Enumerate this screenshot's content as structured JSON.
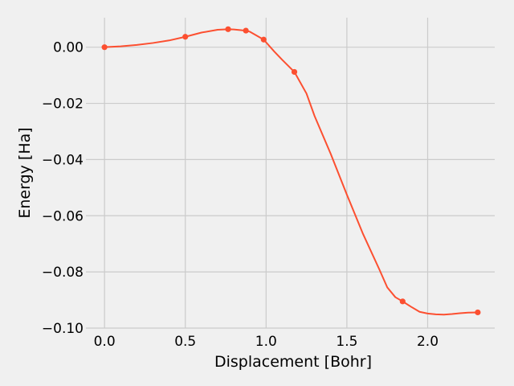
{
  "chart_data": {
    "type": "line",
    "title": "",
    "xlabel": "Displacement [Bohr]",
    "ylabel": "Energy [Ha]",
    "xlim": [
      -0.115,
      2.415
    ],
    "ylim": [
      -0.1,
      0.0105
    ],
    "grid": true,
    "x_ticks": [
      0.0,
      0.5,
      1.0,
      1.5,
      2.0
    ],
    "x_tick_labels": [
      "0.0",
      "0.5",
      "1.0",
      "1.5",
      "2.0"
    ],
    "y_ticks": [
      0.0,
      -0.02,
      -0.04,
      -0.06,
      -0.08,
      -0.1
    ],
    "y_tick_labels": [
      "0.00",
      "−0.02",
      "−0.04",
      "−0.06",
      "−0.08",
      "−0.10"
    ],
    "color": "#fc4f30",
    "markers": {
      "x": [
        0.0,
        0.5,
        0.765,
        0.875,
        0.985,
        1.175,
        1.845,
        2.31
      ],
      "y": [
        0.0,
        0.0037,
        0.0064,
        0.0059,
        0.0027,
        -0.0088,
        -0.0905,
        -0.0944
      ]
    },
    "curve": {
      "x": [
        0.0,
        0.1,
        0.2,
        0.3,
        0.4,
        0.5,
        0.6,
        0.7,
        0.765,
        0.8,
        0.875,
        0.9,
        0.985,
        1.05,
        1.1,
        1.175,
        1.25,
        1.3,
        1.4,
        1.5,
        1.6,
        1.7,
        1.75,
        1.8,
        1.845,
        1.9,
        1.95,
        2.0,
        2.05,
        2.1,
        2.15,
        2.2,
        2.25,
        2.31
      ],
      "y": [
        0.0,
        0.0003,
        0.0008,
        0.0015,
        0.0024,
        0.0037,
        0.0052,
        0.0062,
        0.0064,
        0.0063,
        0.0059,
        0.0055,
        0.0027,
        -0.0015,
        -0.0045,
        -0.0088,
        -0.0165,
        -0.0245,
        -0.038,
        -0.0525,
        -0.0665,
        -0.079,
        -0.0855,
        -0.089,
        -0.0905,
        -0.0925,
        -0.0942,
        -0.0948,
        -0.0951,
        -0.0952,
        -0.095,
        -0.0947,
        -0.0945,
        -0.0944
      ]
    }
  }
}
